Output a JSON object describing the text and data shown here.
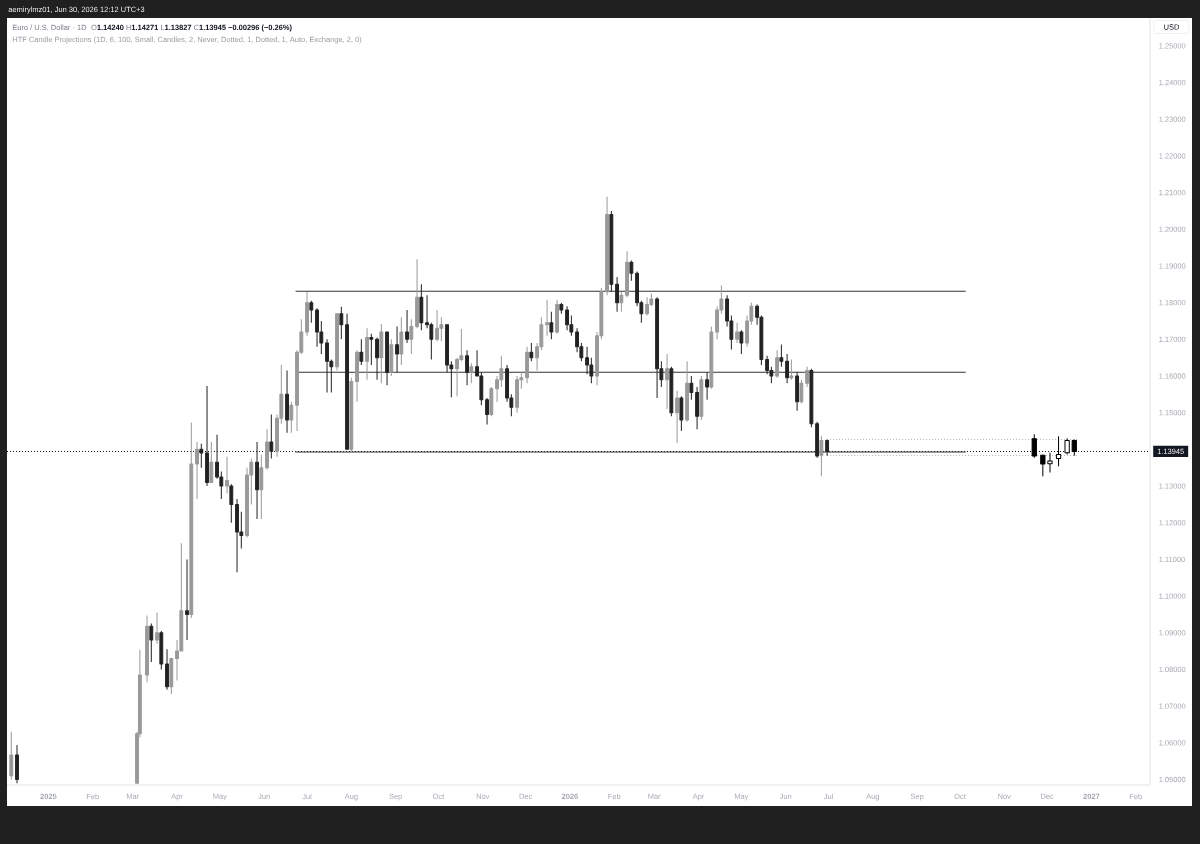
{
  "chart_data": {
    "type": "candlestick",
    "title": "Euro / U.S. Dollar · 1D",
    "subtitle": "HTF Candle Projections (1D, 6, 100, Small, Candles, 2, Never, Dotted, 1, Dotted, 1, Auto, Exchange, 2, 0)",
    "ylabel": "USD",
    "annotations": [
      "aemirylmz01, Jun 30, 2026 12:12 UTC+3",
      "O**1.14240** H**1.14271** L**1.13827** C**1.13945** **−0.00296 (−0.26%)**"
    ],
    "x": [
      "2024-12-06",
      "2024-12-10",
      "2025-03-04",
      "2025-03-06",
      "2025-03-11",
      "2025-03-14",
      "2025-03-18",
      "2025-03-21",
      "2025-03-25",
      "2025-03-28",
      "2025-04-01",
      "2025-04-04",
      "2025-04-08",
      "2025-04-11",
      "2025-04-15",
      "2025-04-18",
      "2025-04-22",
      "2025-04-25",
      "2025-04-29",
      "2025-05-02",
      "2025-05-06",
      "2025-05-09",
      "2025-05-13",
      "2025-05-16",
      "2025-05-20",
      "2025-05-23",
      "2025-05-27",
      "2025-05-30",
      "2025-06-03",
      "2025-06-06",
      "2025-06-10",
      "2025-06-13",
      "2025-06-17",
      "2025-06-20",
      "2025-06-24",
      "2025-06-27",
      "2025-07-01",
      "2025-07-04",
      "2025-07-08",
      "2025-07-11",
      "2025-07-15",
      "2025-07-18",
      "2025-07-22",
      "2025-07-25",
      "2025-07-29",
      "2025-08-01",
      "2025-08-05",
      "2025-08-08",
      "2025-08-12",
      "2025-08-15",
      "2025-08-19",
      "2025-08-22",
      "2025-08-26",
      "2025-08-29",
      "2025-09-02",
      "2025-09-05",
      "2025-09-09",
      "2025-09-12",
      "2025-09-16",
      "2025-09-19",
      "2025-09-23",
      "2025-09-26",
      "2025-09-30",
      "2025-10-03",
      "2025-10-07",
      "2025-10-10",
      "2025-10-14",
      "2025-10-17",
      "2025-10-21",
      "2025-10-24",
      "2025-10-28",
      "2025-10-31",
      "2025-11-04",
      "2025-11-07",
      "2025-11-11",
      "2025-11-14",
      "2025-11-18",
      "2025-11-21",
      "2025-11-25",
      "2025-11-28",
      "2025-12-02",
      "2025-12-05",
      "2025-12-09",
      "2025-12-12",
      "2025-12-16",
      "2025-12-19",
      "2025-12-23",
      "2025-12-26",
      "2025-12-30",
      "2026-01-02",
      "2026-01-06",
      "2026-01-09",
      "2026-01-13",
      "2026-01-16",
      "2026-01-20",
      "2026-01-23",
      "2026-01-27",
      "2026-01-30",
      "2026-02-03",
      "2026-02-06",
      "2026-02-10",
      "2026-02-13",
      "2026-02-17",
      "2026-02-20",
      "2026-02-24",
      "2026-02-27",
      "2026-03-03",
      "2026-03-06",
      "2026-03-10",
      "2026-03-13",
      "2026-03-17",
      "2026-03-20",
      "2026-03-24",
      "2026-03-27",
      "2026-03-31",
      "2026-04-03",
      "2026-04-07",
      "2026-04-10",
      "2026-04-14",
      "2026-04-17",
      "2026-04-21",
      "2026-04-24",
      "2026-04-28",
      "2026-05-01",
      "2026-05-05",
      "2026-05-08",
      "2026-05-12",
      "2026-05-15",
      "2026-05-19",
      "2026-05-22",
      "2026-05-26",
      "2026-05-29",
      "2026-06-02",
      "2026-06-05",
      "2026-06-09",
      "2026-06-12",
      "2026-06-16",
      "2026-06-19",
      "2026-06-23",
      "2026-06-26",
      "2026-06-30"
    ],
    "ohlc": [
      [
        1.051,
        1.063,
        1.05,
        1.0567
      ],
      [
        1.0567,
        1.0594,
        1.049,
        1.05
      ],
      [
        1.049,
        1.063,
        1.049,
        1.0625
      ],
      [
        1.0625,
        1.0854,
        1.0615,
        1.0785
      ],
      [
        1.0785,
        1.0947,
        1.0765,
        1.0918
      ],
      [
        1.0918,
        1.0925,
        1.082,
        1.088
      ],
      [
        1.088,
        1.0955,
        1.087,
        1.09
      ],
      [
        1.09,
        1.0905,
        1.08,
        1.0815
      ],
      [
        1.0815,
        1.0855,
        1.0745,
        1.0753
      ],
      [
        1.0753,
        1.083,
        1.0733,
        1.083
      ],
      [
        1.083,
        1.088,
        1.077,
        1.085
      ],
      [
        1.085,
        1.1144,
        1.085,
        1.096
      ],
      [
        1.096,
        1.11,
        1.088,
        1.095
      ],
      [
        1.095,
        1.1473,
        1.094,
        1.136
      ],
      [
        1.136,
        1.142,
        1.1265,
        1.14
      ],
      [
        1.14,
        1.1415,
        1.135,
        1.139
      ],
      [
        1.139,
        1.1573,
        1.13,
        1.131
      ],
      [
        1.131,
        1.142,
        1.131,
        1.1365
      ],
      [
        1.1365,
        1.144,
        1.132,
        1.1325
      ],
      [
        1.1325,
        1.134,
        1.1265,
        1.13
      ],
      [
        1.13,
        1.138,
        1.128,
        1.1315
      ],
      [
        1.13,
        1.1305,
        1.12,
        1.125
      ],
      [
        1.125,
        1.1265,
        1.1065,
        1.1175
      ],
      [
        1.1175,
        1.123,
        1.113,
        1.1165
      ],
      [
        1.1165,
        1.135,
        1.116,
        1.133
      ],
      [
        1.133,
        1.1375,
        1.125,
        1.1365
      ],
      [
        1.1365,
        1.142,
        1.121,
        1.129
      ],
      [
        1.129,
        1.1385,
        1.121,
        1.135
      ],
      [
        1.135,
        1.1455,
        1.1345,
        1.142
      ],
      [
        1.142,
        1.1495,
        1.1375,
        1.1395
      ],
      [
        1.1395,
        1.1495,
        1.138,
        1.1485
      ],
      [
        1.1485,
        1.1631,
        1.147,
        1.155
      ],
      [
        1.155,
        1.1615,
        1.1445,
        1.148
      ],
      [
        1.148,
        1.153,
        1.1445,
        1.152
      ],
      [
        1.152,
        1.167,
        1.145,
        1.1665
      ],
      [
        1.1665,
        1.1755,
        1.166,
        1.172
      ],
      [
        1.172,
        1.183,
        1.171,
        1.18
      ],
      [
        1.18,
        1.1805,
        1.1745,
        1.178
      ],
      [
        1.178,
        1.1785,
        1.168,
        1.172
      ],
      [
        1.172,
        1.175,
        1.166,
        1.169
      ],
      [
        1.169,
        1.17,
        1.1555,
        1.164
      ],
      [
        1.164,
        1.1645,
        1.1555,
        1.1625
      ],
      [
        1.1625,
        1.177,
        1.1615,
        1.177
      ],
      [
        1.177,
        1.1789,
        1.17,
        1.174
      ],
      [
        1.174,
        1.177,
        1.14,
        1.14
      ],
      [
        1.14,
        1.1595,
        1.1391,
        1.1585
      ],
      [
        1.1585,
        1.167,
        1.153,
        1.1665
      ],
      [
        1.1665,
        1.17,
        1.163,
        1.164
      ],
      [
        1.164,
        1.173,
        1.159,
        1.1705
      ],
      [
        1.1705,
        1.1715,
        1.163,
        1.17
      ],
      [
        1.17,
        1.1705,
        1.159,
        1.165
      ],
      [
        1.165,
        1.1742,
        1.158,
        1.172
      ],
      [
        1.172,
        1.172,
        1.1575,
        1.161
      ],
      [
        1.161,
        1.17,
        1.16,
        1.1685
      ],
      [
        1.1685,
        1.1735,
        1.161,
        1.166
      ],
      [
        1.166,
        1.176,
        1.163,
        1.172
      ],
      [
        1.172,
        1.178,
        1.169,
        1.17
      ],
      [
        1.17,
        1.1755,
        1.166,
        1.1735
      ],
      [
        1.1735,
        1.1918,
        1.173,
        1.1815
      ],
      [
        1.1815,
        1.185,
        1.1725,
        1.1745
      ],
      [
        1.1745,
        1.182,
        1.173,
        1.174
      ],
      [
        1.174,
        1.1745,
        1.1645,
        1.17
      ],
      [
        1.17,
        1.178,
        1.1695,
        1.173
      ],
      [
        1.173,
        1.176,
        1.1695,
        1.174
      ],
      [
        1.174,
        1.174,
        1.161,
        1.163
      ],
      [
        1.163,
        1.164,
        1.1542,
        1.162
      ],
      [
        1.162,
        1.165,
        1.1545,
        1.1645
      ],
      [
        1.1645,
        1.1728,
        1.164,
        1.1655
      ],
      [
        1.1655,
        1.167,
        1.1575,
        1.161
      ],
      [
        1.161,
        1.1635,
        1.158,
        1.1625
      ],
      [
        1.1625,
        1.167,
        1.16,
        1.16
      ],
      [
        1.16,
        1.161,
        1.152,
        1.1535
      ],
      [
        1.1535,
        1.154,
        1.1468,
        1.1495
      ],
      [
        1.1495,
        1.157,
        1.149,
        1.1565
      ],
      [
        1.1565,
        1.16,
        1.153,
        1.159
      ],
      [
        1.159,
        1.1655,
        1.157,
        1.162
      ],
      [
        1.162,
        1.163,
        1.153,
        1.154
      ],
      [
        1.154,
        1.155,
        1.149,
        1.1515
      ],
      [
        1.1515,
        1.16,
        1.15,
        1.159
      ],
      [
        1.159,
        1.161,
        1.1565,
        1.1595
      ],
      [
        1.1595,
        1.168,
        1.158,
        1.1665
      ],
      [
        1.1665,
        1.169,
        1.164,
        1.165
      ],
      [
        1.165,
        1.169,
        1.1615,
        1.168
      ],
      [
        1.168,
        1.176,
        1.167,
        1.174
      ],
      [
        1.174,
        1.1808,
        1.171,
        1.1745
      ],
      [
        1.1745,
        1.1775,
        1.17,
        1.172
      ],
      [
        1.172,
        1.1808,
        1.1715,
        1.1795
      ],
      [
        1.1795,
        1.18,
        1.177,
        1.178
      ],
      [
        1.178,
        1.179,
        1.1725,
        1.174
      ],
      [
        1.174,
        1.1765,
        1.171,
        1.172
      ],
      [
        1.172,
        1.173,
        1.1665,
        1.168
      ],
      [
        1.168,
        1.169,
        1.164,
        1.165
      ],
      [
        1.165,
        1.168,
        1.1605,
        1.163
      ],
      [
        1.163,
        1.165,
        1.158,
        1.16
      ],
      [
        1.16,
        1.172,
        1.1575,
        1.171
      ],
      [
        1.171,
        1.184,
        1.17,
        1.183
      ],
      [
        1.183,
        1.2089,
        1.182,
        1.204
      ],
      [
        1.204,
        1.205,
        1.183,
        1.185
      ],
      [
        1.185,
        1.187,
        1.1775,
        1.18
      ],
      [
        1.18,
        1.183,
        1.1775,
        1.182
      ],
      [
        1.182,
        1.194,
        1.1815,
        1.191
      ],
      [
        1.191,
        1.1915,
        1.186,
        1.188
      ],
      [
        1.188,
        1.1885,
        1.179,
        1.18
      ],
      [
        1.18,
        1.1805,
        1.1745,
        1.177
      ],
      [
        1.177,
        1.1815,
        1.1765,
        1.1795
      ],
      [
        1.1795,
        1.1825,
        1.179,
        1.181
      ],
      [
        1.181,
        1.1815,
        1.154,
        1.162
      ],
      [
        1.162,
        1.164,
        1.157,
        1.159
      ],
      [
        1.159,
        1.166,
        1.151,
        1.162
      ],
      [
        1.162,
        1.1625,
        1.149,
        1.15
      ],
      [
        1.15,
        1.156,
        1.1418,
        1.154
      ],
      [
        1.154,
        1.1545,
        1.145,
        1.148
      ],
      [
        1.148,
        1.164,
        1.1475,
        1.158
      ],
      [
        1.158,
        1.16,
        1.1535,
        1.1555
      ],
      [
        1.1555,
        1.157,
        1.1455,
        1.149
      ],
      [
        1.149,
        1.16,
        1.148,
        1.159
      ],
      [
        1.159,
        1.161,
        1.1535,
        1.157
      ],
      [
        1.157,
        1.1735,
        1.1565,
        1.172
      ],
      [
        1.172,
        1.179,
        1.17,
        1.178
      ],
      [
        1.178,
        1.1847,
        1.177,
        1.181
      ],
      [
        1.181,
        1.182,
        1.1735,
        1.175
      ],
      [
        1.175,
        1.1765,
        1.1672,
        1.17
      ],
      [
        1.17,
        1.1745,
        1.169,
        1.172
      ],
      [
        1.172,
        1.1725,
        1.166,
        1.169
      ],
      [
        1.169,
        1.1765,
        1.168,
        1.175
      ],
      [
        1.175,
        1.18,
        1.174,
        1.179
      ],
      [
        1.179,
        1.1795,
        1.174,
        1.176
      ],
      [
        1.176,
        1.1765,
        1.163,
        1.1645
      ],
      [
        1.1645,
        1.1655,
        1.1605,
        1.1615
      ],
      [
        1.1615,
        1.1625,
        1.158,
        1.16
      ],
      [
        1.16,
        1.167,
        1.1595,
        1.165
      ],
      [
        1.165,
        1.1686,
        1.1625,
        1.164
      ],
      [
        1.164,
        1.166,
        1.158,
        1.1595
      ],
      [
        1.1595,
        1.1645,
        1.159,
        1.16
      ],
      [
        1.16,
        1.161,
        1.1505,
        1.153
      ],
      [
        1.153,
        1.159,
        1.1525,
        1.158
      ],
      [
        1.158,
        1.1625,
        1.157,
        1.1615
      ],
      [
        1.1615,
        1.162,
        1.146,
        1.147
      ],
      [
        1.147,
        1.1475,
        1.1377,
        1.1382
      ],
      [
        1.1384,
        1.1436,
        1.1327,
        1.1424
      ],
      [
        1.1424,
        1.14271,
        1.13827,
        1.13945
      ]
    ],
    "colors": [
      "#999999",
      "#222222",
      "#999999",
      "#999999",
      "#999999",
      "#222222",
      "#999999",
      "#222222",
      "#222222",
      "#999999",
      "#999999",
      "#999999",
      "#222222",
      "#999999",
      "#999999",
      "#222222",
      "#222222",
      "#999999",
      "#222222",
      "#222222",
      "#999999",
      "#222222",
      "#222222",
      "#222222",
      "#999999",
      "#999999",
      "#222222",
      "#999999",
      "#999999",
      "#222222",
      "#999999",
      "#999999",
      "#222222",
      "#999999",
      "#999999",
      "#999999",
      "#999999",
      "#222222",
      "#222222",
      "#222222",
      "#222222",
      "#222222",
      "#999999",
      "#222222",
      "#222222",
      "#999999",
      "#999999",
      "#222222",
      "#999999",
      "#222222",
      "#222222",
      "#999999",
      "#222222",
      "#999999",
      "#222222",
      "#999999",
      "#222222",
      "#999999",
      "#999999",
      "#222222",
      "#222222",
      "#222222",
      "#999999",
      "#999999",
      "#222222",
      "#222222",
      "#999999",
      "#999999",
      "#222222",
      "#999999",
      "#222222",
      "#222222",
      "#222222",
      "#999999",
      "#999999",
      "#999999",
      "#222222",
      "#222222",
      "#999999",
      "#999999",
      "#999999",
      "#222222",
      "#999999",
      "#999999",
      "#999999",
      "#222222",
      "#999999",
      "#222222",
      "#222222",
      "#222222",
      "#222222",
      "#222222",
      "#222222",
      "#222222",
      "#999999",
      "#999999",
      "#999999",
      "#222222",
      "#222222",
      "#999999",
      "#999999",
      "#222222",
      "#222222",
      "#222222",
      "#999999",
      "#999999",
      "#222222",
      "#222222",
      "#999999",
      "#222222",
      "#999999",
      "#222222",
      "#999999",
      "#222222",
      "#222222",
      "#999999",
      "#222222",
      "#999999",
      "#999999",
      "#999999",
      "#222222",
      "#222222",
      "#999999",
      "#222222",
      "#999999",
      "#999999",
      "#222222",
      "#222222",
      "#222222",
      "#222222",
      "#999999",
      "#222222",
      "#222222",
      "#999999",
      "#222222",
      "#999999",
      "#999999",
      "#222222",
      "#222222",
      "#999999",
      "#222222"
    ],
    "series": [
      {
        "type": "candlestick",
        "color": "#000000",
        "colors": [
          "#000000",
          "#000000",
          "#ffffff",
          "#ffffff",
          "#ffffff",
          "#000000"
        ],
        "x": [
          "2026-11-22",
          "2026-11-28",
          "2026-12-03",
          "2026-12-09",
          "2026-12-15",
          "2026-12-20"
        ],
        "ohlc": [
          [
            1.1429,
            1.1441,
            1.1377,
            1.1382
          ],
          [
            1.1384,
            1.1386,
            1.1327,
            1.136
          ],
          [
            1.1361,
            1.1391,
            1.1337,
            1.1368
          ],
          [
            1.1375,
            1.1436,
            1.1354,
            1.1386
          ],
          [
            1.1391,
            1.143,
            1.1386,
            1.1424
          ],
          [
            1.1424,
            1.14271,
            1.13827,
            1.13945
          ]
        ]
      },
      {
        "type": "line",
        "color": "#333333",
        "x": [
          "2025-06-23",
          "2026-10-05"
        ],
        "values": [
          1.1831,
          1.1831
        ]
      },
      {
        "type": "line",
        "color": "#333333",
        "x": [
          "2025-06-23",
          "2026-10-05"
        ],
        "values": [
          1.161,
          1.161
        ]
      },
      {
        "type": "line",
        "color": "#333333",
        "x": [
          "2025-06-23",
          "2026-10-05"
        ],
        "values": [
          1.1393,
          1.1393
        ]
      },
      {
        "type": "line",
        "color": "#b2b5be",
        "line_style": "dotted",
        "x": [
          "2026-06-30",
          "2026-12-22"
        ],
        "values": [
          1.1427,
          1.1427
        ]
      },
      {
        "type": "line",
        "color": "#b2b5be",
        "line_style": "dotted",
        "x": [
          "2026-06-30",
          "2026-12-22"
        ],
        "values": [
          1.1383,
          1.1383
        ]
      }
    ],
    "ref_lines": [
      {
        "axis": "y",
        "value": 1.13945,
        "label": "1.13945",
        "line_style": "dotted",
        "color": "#131722"
      }
    ],
    "xlim": [
      "2024-12-03",
      "2027-02-11"
    ],
    "xticks": [
      {
        "value": "2025-01-01",
        "label": "2025"
      },
      {
        "value": "2025-02-01",
        "label": "Feb"
      },
      {
        "value": "2025-03-01",
        "label": "Mar"
      },
      {
        "value": "2025-04-01",
        "label": "Apr"
      },
      {
        "value": "2025-05-01",
        "label": "May"
      },
      {
        "value": "2025-06-01",
        "label": "Jun"
      },
      {
        "value": "2025-07-01",
        "label": "Jul"
      },
      {
        "value": "2025-08-01",
        "label": "Aug"
      },
      {
        "value": "2025-09-01",
        "label": "Sep"
      },
      {
        "value": "2025-10-01",
        "label": "Oct"
      },
      {
        "value": "2025-11-01",
        "label": "Nov"
      },
      {
        "value": "2025-12-01",
        "label": "Dec"
      },
      {
        "value": "2026-01-01",
        "label": "2026"
      },
      {
        "value": "2026-02-01",
        "label": "Feb"
      },
      {
        "value": "2026-03-01",
        "label": "Mar"
      },
      {
        "value": "2026-04-01",
        "label": "Apr"
      },
      {
        "value": "2026-05-01",
        "label": "May"
      },
      {
        "value": "2026-06-01",
        "label": "Jun"
      },
      {
        "value": "2026-07-01",
        "label": "Jul"
      },
      {
        "value": "2026-08-01",
        "label": "Aug"
      },
      {
        "value": "2026-09-01",
        "label": "Sep"
      },
      {
        "value": "2026-10-01",
        "label": "Oct"
      },
      {
        "value": "2026-11-01",
        "label": "Nov"
      },
      {
        "value": "2026-12-01",
        "label": "Dec"
      },
      {
        "value": "2027-01-01",
        "label": "2027"
      },
      {
        "value": "2027-02-01",
        "label": "Feb"
      }
    ],
    "ylim": [
      1.0485,
      1.2576
    ],
    "yticks": [
      {
        "value": 1.05,
        "label": "1.05000"
      },
      {
        "value": 1.06,
        "label": "1.06000"
      },
      {
        "value": 1.07,
        "label": "1.07000"
      },
      {
        "value": 1.08,
        "label": "1.08000"
      },
      {
        "value": 1.09,
        "label": "1.09000"
      },
      {
        "value": 1.1,
        "label": "1.10000"
      },
      {
        "value": 1.11,
        "label": "1.11000"
      },
      {
        "value": 1.12,
        "label": "1.12000"
      },
      {
        "value": 1.13,
        "label": "1.13000"
      },
      {
        "value": 1.15,
        "label": "1.15000"
      },
      {
        "value": 1.16,
        "label": "1.16000"
      },
      {
        "value": 1.17,
        "label": "1.17000"
      },
      {
        "value": 1.18,
        "label": "1.18000"
      },
      {
        "value": 1.19,
        "label": "1.19000"
      },
      {
        "value": 1.2,
        "label": "1.20000"
      },
      {
        "value": 1.21,
        "label": "1.21000"
      },
      {
        "value": 1.22,
        "label": "1.22000"
      },
      {
        "value": 1.23,
        "label": "1.23000"
      },
      {
        "value": 1.24,
        "label": "1.24000"
      },
      {
        "value": 1.25,
        "label": "1.25000"
      }
    ]
  }
}
